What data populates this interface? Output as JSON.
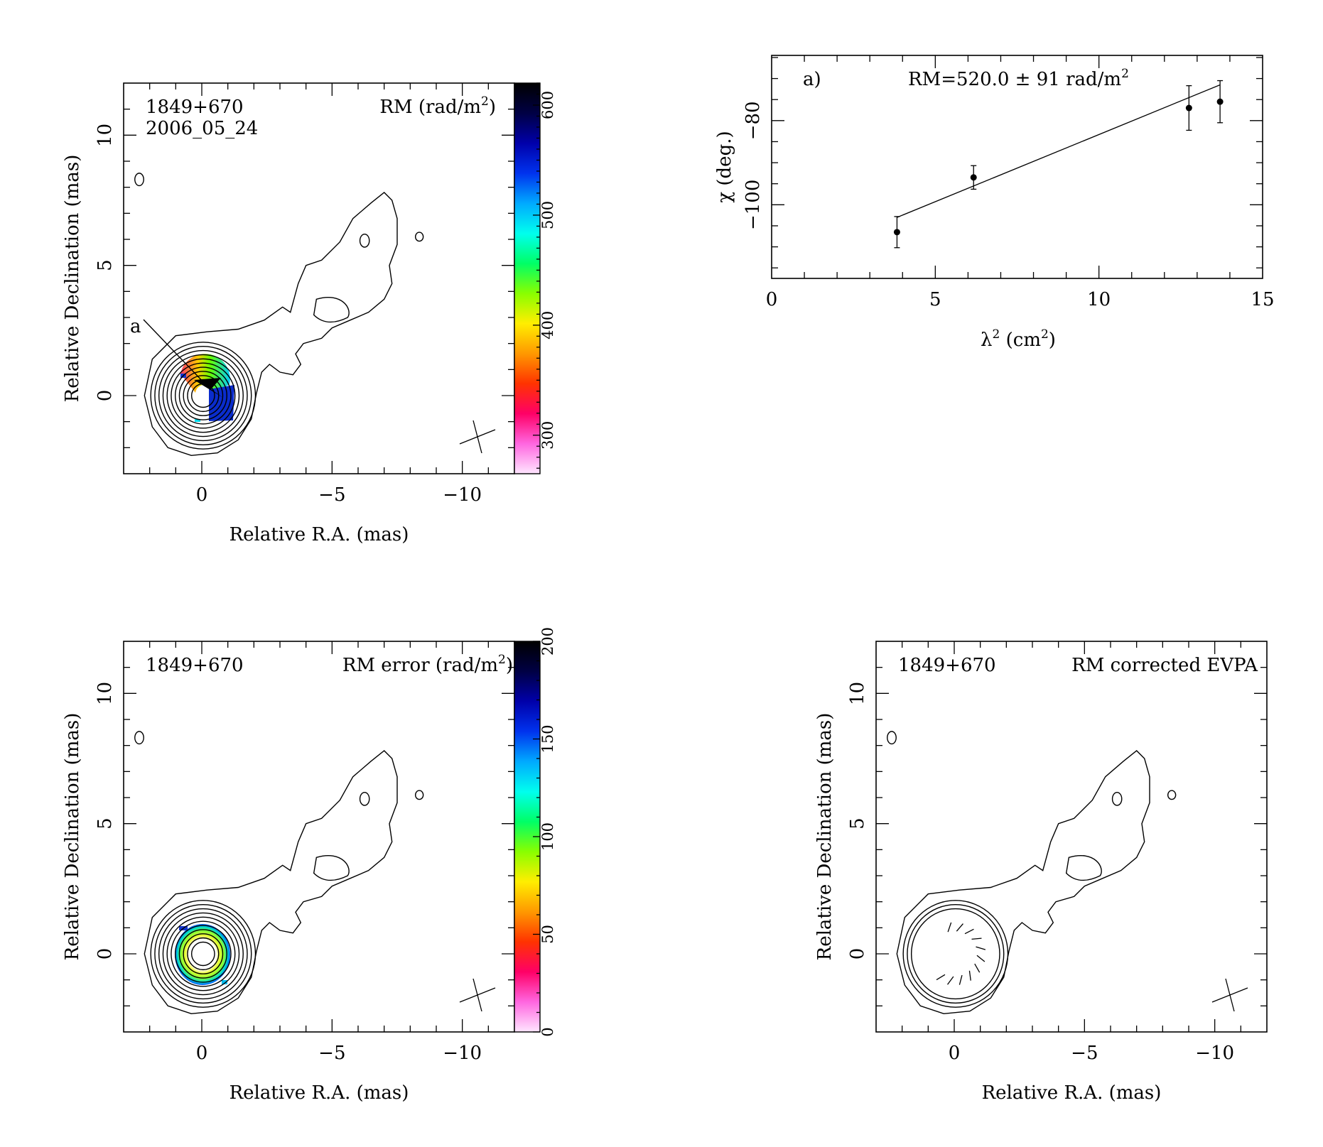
{
  "colors": {
    "colormap": [
      "#ffe6ff",
      "#ff66e0",
      "#ff0066",
      "#ff3300",
      "#ff9900",
      "#ffee00",
      "#88ff00",
      "#00ff66",
      "#00ffee",
      "#00aaff",
      "#0033ee",
      "#0000aa",
      "#000044",
      "#000000"
    ]
  },
  "panel_tl": {
    "source": "1849+670",
    "epoch": "2006_05_24",
    "map_label": "RM (rad/m",
    "map_label_exp": "2",
    "map_label_end": ")",
    "annotation": "a",
    "xlabel": "Relative R.A. (mas)",
    "ylabel": "Relative Declination (mas)",
    "xticks": [
      "0",
      "−5",
      "−10"
    ],
    "yticks": [
      "0",
      "5",
      "10"
    ],
    "colorbar_ticks": [
      "300",
      "400",
      "500",
      "600"
    ]
  },
  "panel_bl": {
    "source": "1849+670",
    "map_label": "RM error (rad/m",
    "map_label_exp": "2",
    "map_label_end": ")",
    "xlabel": "Relative R.A. (mas)",
    "ylabel": "Relative Declination (mas)",
    "xticks": [
      "0",
      "−5",
      "−10"
    ],
    "yticks": [
      "0",
      "5",
      "10"
    ],
    "colorbar_ticks": [
      "0",
      "50",
      "100",
      "150",
      "200"
    ]
  },
  "panel_br": {
    "source": "1849+670",
    "map_label": "RM corrected EVPA",
    "xlabel": "Relative R.A. (mas)",
    "ylabel": "Relative Declination (mas)",
    "xticks": [
      "0",
      "−5",
      "−10"
    ],
    "yticks": [
      "0",
      "5",
      "10"
    ]
  },
  "chart_data": [
    {
      "type": "scatter",
      "panel_label": "a)",
      "annotation": "RM=520.0 ± 91 rad/m",
      "annotation_exp": "2",
      "xlabel": "λ",
      "xlabel_exp": "2",
      "xlabel_unit": " (cm",
      "xlabel_unit_exp": "2",
      "xlabel_end": ")",
      "ylabel": "χ (deg.)",
      "xlim": [
        0,
        15
      ],
      "ylim": [
        -117.5,
        -64.5
      ],
      "xticks": [
        "0",
        "5",
        "10",
        "15"
      ],
      "yticks": [
        "−100",
        "−80"
      ],
      "x": [
        3.83,
        6.17,
        12.75,
        13.7
      ],
      "y": [
        -106.5,
        -93.5,
        -77,
        -75.5
      ],
      "yerr": [
        3.7,
        2.8,
        5.3,
        5.0
      ],
      "fit_line": {
        "x": [
          3.83,
          13.7
        ],
        "y": [
          -103,
          -71.5
        ]
      }
    },
    {
      "type": "heatmap",
      "panel": "top-left",
      "colorbar_range": [
        265,
        620
      ],
      "xlim": [
        3,
        -12
      ],
      "ylim": [
        -3,
        12
      ]
    },
    {
      "type": "heatmap",
      "panel": "bottom-left",
      "colorbar_range": [
        0,
        200
      ],
      "xlim": [
        3,
        -12
      ],
      "ylim": [
        -3,
        12
      ]
    }
  ]
}
